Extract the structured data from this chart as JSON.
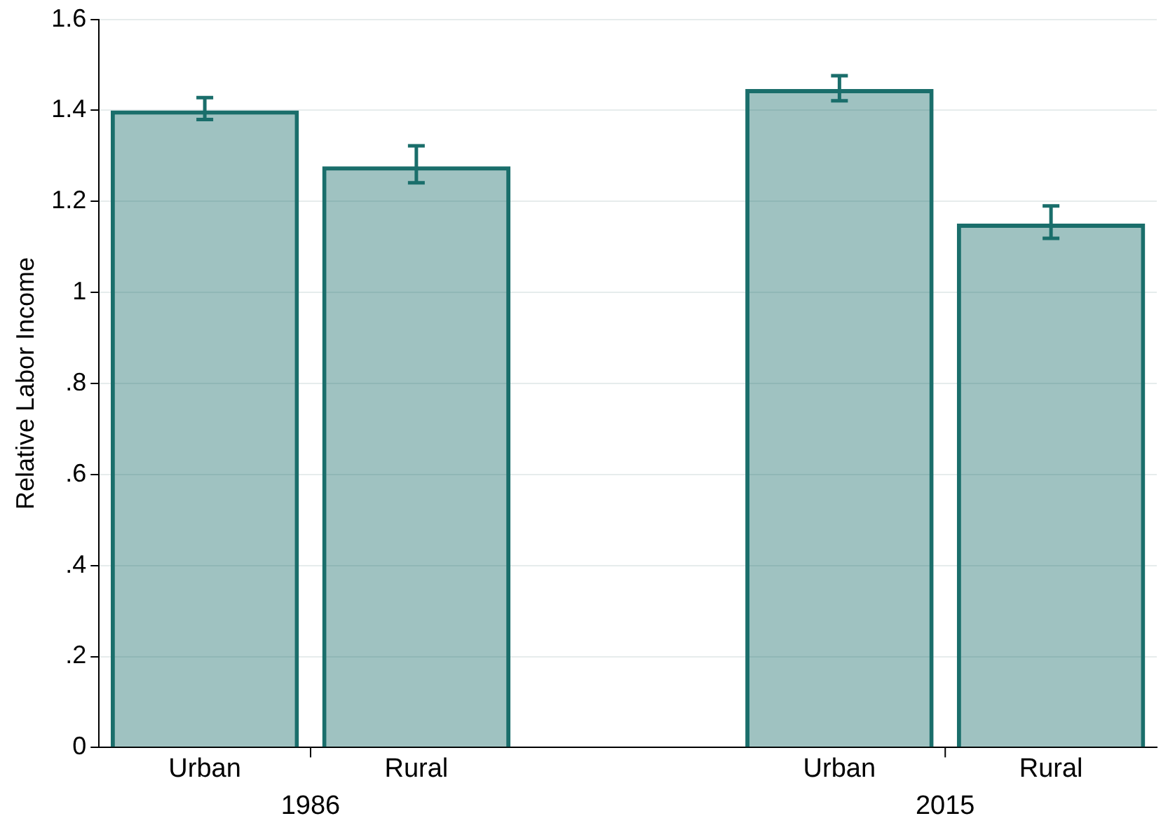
{
  "chart_data": {
    "type": "bar",
    "ylabel": "Relative Labor Income",
    "categories": [
      "Urban",
      "Rural",
      null,
      "Urban",
      "Rural"
    ],
    "values": [
      1.4,
      1.277,
      null,
      1.447,
      1.151
    ],
    "errors": [
      [
        1.38,
        1.428
      ],
      [
        1.241,
        1.322
      ],
      null,
      [
        1.421,
        1.476
      ],
      [
        1.119,
        1.19
      ]
    ],
    "color": "#1a6e6b",
    "ylim": [
      0,
      1.6
    ],
    "yticks": [
      0,
      {
        "value": 0.2,
        "label": ".2"
      },
      {
        "value": 0.4,
        "label": ".4"
      },
      {
        "value": 0.6,
        "label": ".6"
      },
      {
        "value": 0.8,
        "label": ".8"
      },
      1,
      1.2,
      1.4,
      1.6
    ],
    "grid": "y",
    "legend": false,
    "annotations": [
      "1986",
      "2015"
    ]
  }
}
